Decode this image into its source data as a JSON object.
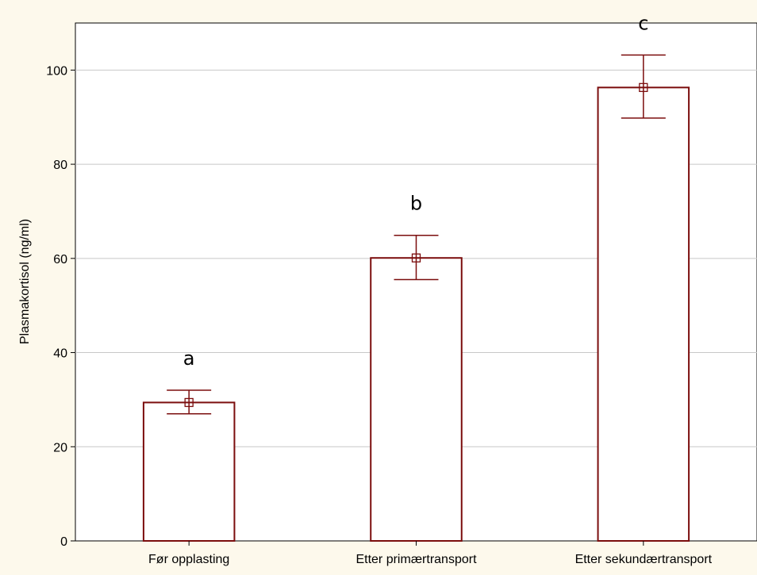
{
  "chart_data": {
    "type": "bar",
    "title": "",
    "xlabel": "",
    "ylabel": "Plasmakortisol (ng/ml)",
    "ylim": [
      0,
      110
    ],
    "yticks": [
      0,
      20,
      40,
      60,
      80,
      100
    ],
    "grid": true,
    "categories": [
      "Før opplasting",
      "Etter primærtransport",
      "Etter sekundærtransport"
    ],
    "values": [
      29.4,
      60.1,
      96.3
    ],
    "error_low": [
      27.0,
      55.5,
      89.8
    ],
    "error_high": [
      32.0,
      64.9,
      103.2
    ],
    "significance_labels": [
      "a",
      "b",
      "c"
    ]
  },
  "colors": {
    "background": "#fdf9ec",
    "plot_area": "#ffffff",
    "bar_edge": "#7b0d0d",
    "bar_fill": "#ffffff",
    "grid": "#c8c8c8",
    "axis": "#000000"
  }
}
